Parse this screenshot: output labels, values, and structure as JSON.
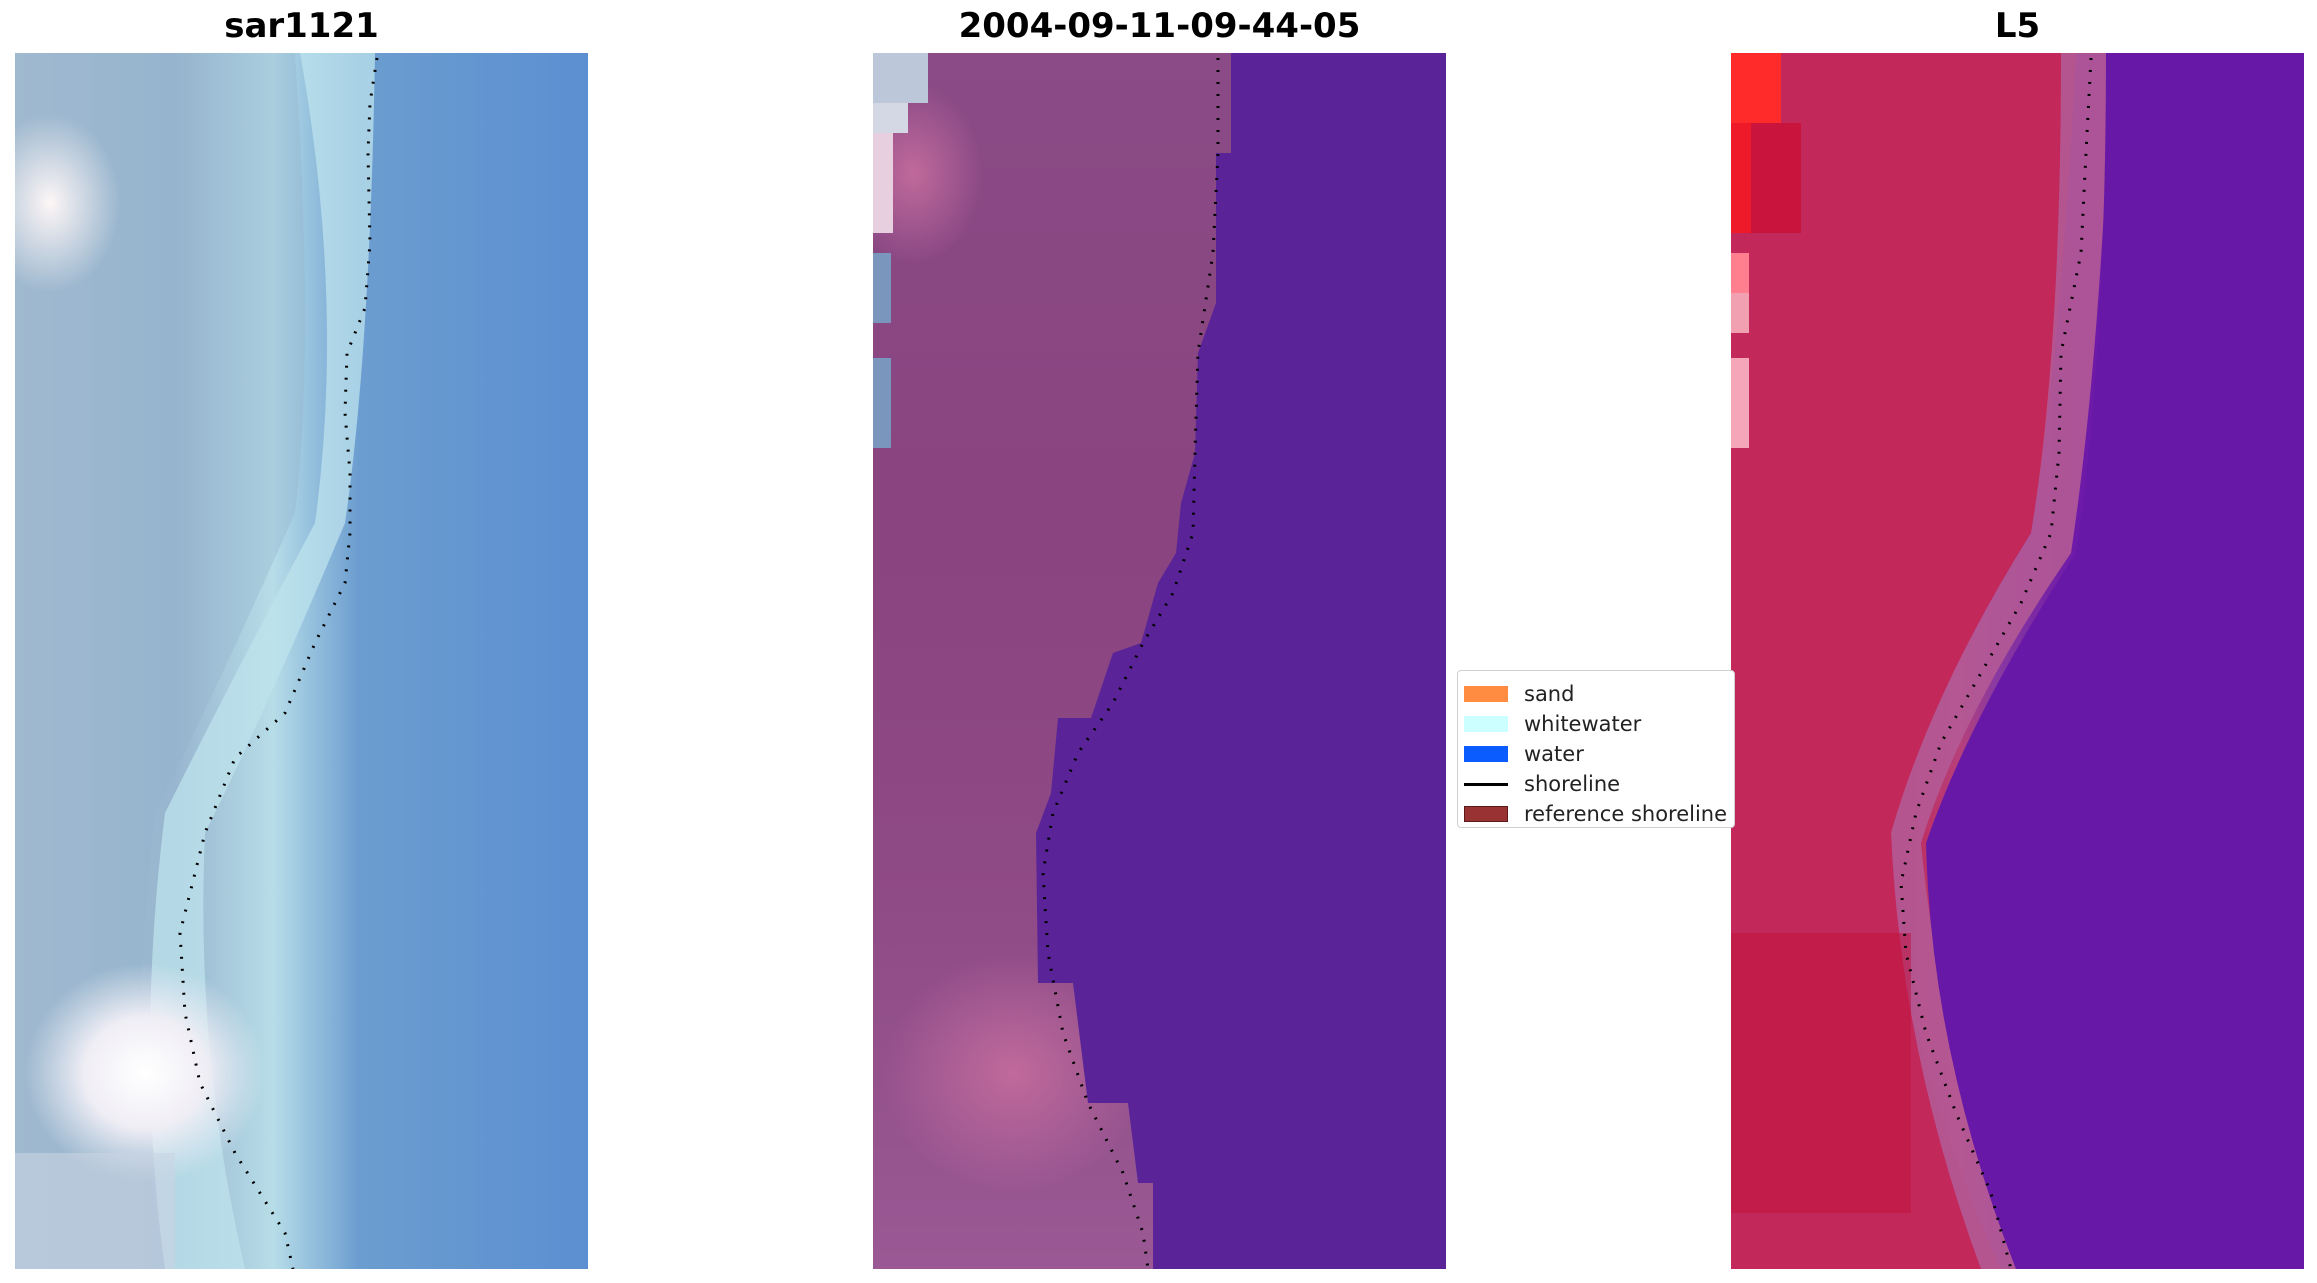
{
  "panels": [
    {
      "title": "sar1121"
    },
    {
      "title": "2004-09-11-09-44-05"
    },
    {
      "title": "L5"
    }
  ],
  "legend": {
    "items": [
      {
        "label": "sand",
        "color": "#ff8c40",
        "kind": "patch"
      },
      {
        "label": "whitewater",
        "color": "#ccffff",
        "kind": "patch"
      },
      {
        "label": "water",
        "color": "#0a5cff",
        "kind": "patch"
      },
      {
        "label": "shoreline",
        "color": "#000000",
        "kind": "line"
      },
      {
        "label": "reference shoreline",
        "color": "#993333",
        "kind": "patch"
      }
    ]
  }
}
